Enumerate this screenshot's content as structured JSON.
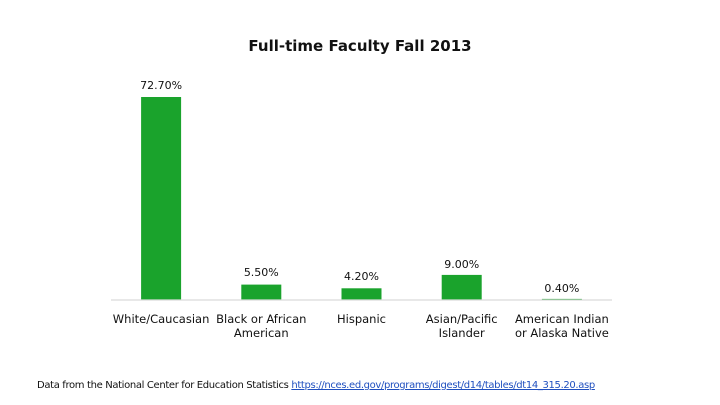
{
  "chart_data": {
    "type": "bar",
    "title": "Full-time Faculty Fall 2013",
    "categories": [
      [
        "White/Caucasian"
      ],
      [
        "Black or African",
        "American"
      ],
      [
        "Hispanic"
      ],
      [
        "Asian/Pacific",
        "Islander"
      ],
      [
        "American Indian",
        "or Alaska Native"
      ]
    ],
    "values": [
      72.7,
      5.5,
      4.2,
      9.0,
      0.4
    ],
    "data_labels": [
      "72.70%",
      "5.50%",
      "4.20%",
      "9.00%",
      "0.40%"
    ],
    "xlabel": "",
    "ylabel": "",
    "ylim": [
      0,
      80
    ],
    "grid": false,
    "legend": "none",
    "bar_color": "#1aa32c"
  },
  "footer": {
    "source_text": "Data from the National Center for Education Statistics",
    "source_link": "https://nces.ed.gov/programs/digest/d14/tables/dt14_315.20.asp"
  }
}
